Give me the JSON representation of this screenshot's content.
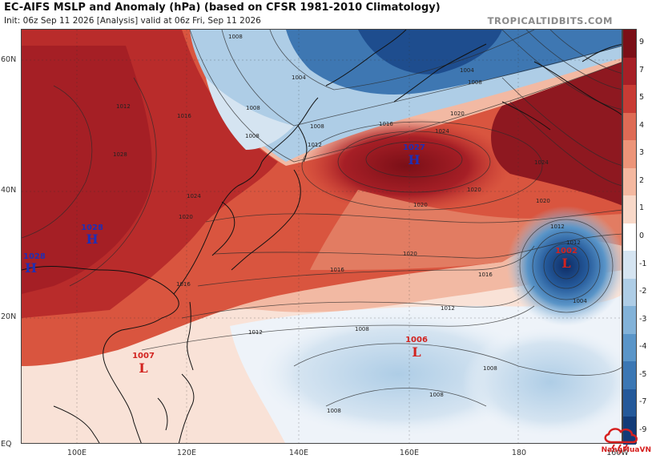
{
  "header": {
    "title": "EC-AIFS MSLP and Anomaly (hPa) (based on CFSR 1981-2010 Climatology)",
    "subtitle": "Init: 06z Sep 11 2026   [Analysis]   valid at 06z Fri, Sep 11 2026",
    "brand": "TROPICALTIDBITS.COM"
  },
  "axes": {
    "lat_labels": [
      "60N",
      "40N",
      "20N",
      "EQ"
    ],
    "lon_labels": [
      "100E",
      "120E",
      "140E",
      "160E",
      "180",
      "160W"
    ]
  },
  "colorbar": {
    "ticks": [
      "9",
      "7",
      "5",
      "4",
      "3",
      "2",
      "1",
      "0",
      "-1",
      "-2",
      "-3",
      "-4",
      "-5",
      "-7",
      "-9"
    ],
    "colors": [
      "#7b0f17",
      "#a61f26",
      "#c83b34",
      "#de6b55",
      "#ec9478",
      "#f4b8a0",
      "#f8d8c8",
      "#ffffff",
      "#d5e4f1",
      "#aecde6",
      "#82b2d8",
      "#5a95c8",
      "#3b77b4",
      "#24599a",
      "#123b78"
    ]
  },
  "pressure_centers": [
    {
      "type": "H",
      "value": "1027",
      "color": "#1f2fb5"
    },
    {
      "type": "H",
      "value": "1028",
      "color": "#1f2fb5"
    },
    {
      "type": "H",
      "value": "1028",
      "color": "#1f2fb5"
    },
    {
      "type": "L",
      "value": "1002",
      "color": "#d2231f"
    },
    {
      "type": "L",
      "value": "1006",
      "color": "#d2231f"
    },
    {
      "type": "L",
      "value": "1007",
      "color": "#d2231f"
    }
  ],
  "isobar_labels": [
    "1008",
    "1004",
    "1004",
    "1008",
    "1008",
    "1012",
    "1016",
    "1020",
    "1024",
    "1020",
    "1016",
    "1012",
    "1008",
    "1020",
    "1020",
    "1020",
    "1016",
    "1016",
    "1012",
    "1012",
    "1008",
    "1012",
    "1024",
    "1012",
    "1028",
    "1024",
    "1008",
    "1008",
    "1004",
    "1016",
    "1008",
    "1008",
    "1020"
  ],
  "watermark": {
    "text": "NangMuaVN",
    "icon": "cloud-rain-icon"
  }
}
